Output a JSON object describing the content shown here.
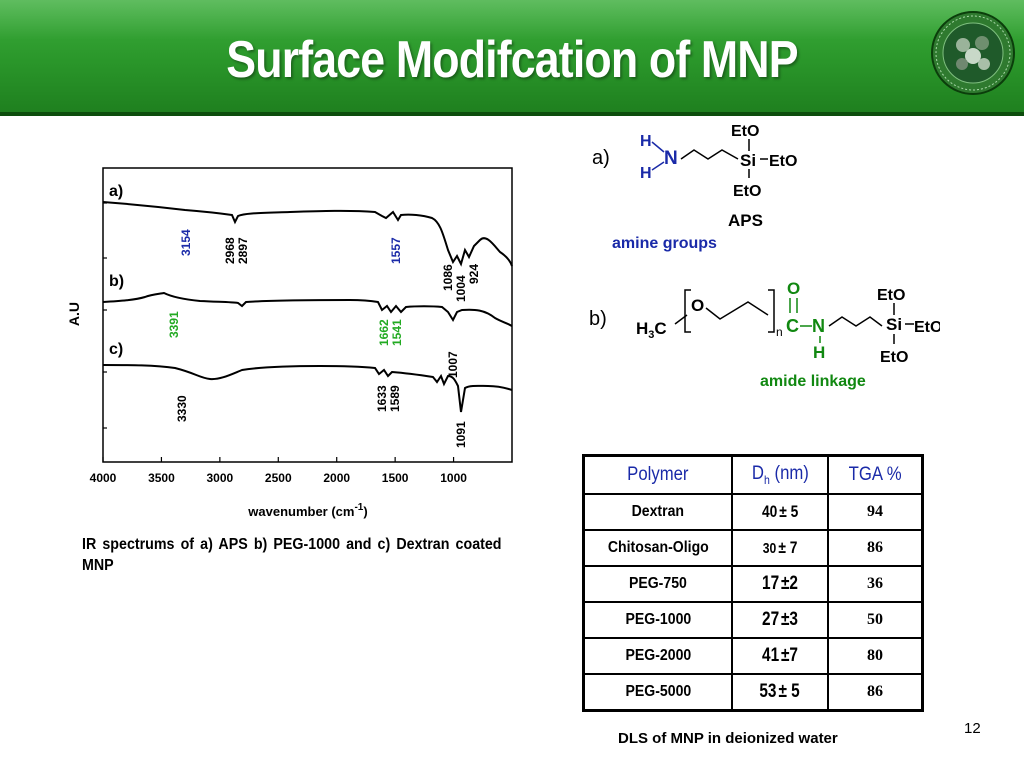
{
  "slide": {
    "title": "Surface Modifcation of MNP",
    "page_number": "12",
    "colors": {
      "header_green": "#2a962a",
      "blue_label": "#1a2aa8",
      "green_label": "#22aa22",
      "amide_green": "#118811"
    }
  },
  "ir_chart": {
    "ylabel": "A.U",
    "xlabel_main": "wavenumber (cm",
    "xlabel_sup": "-1",
    "xlabel_close": ")",
    "caption": "IR spectrums of a) APS b) PEG-1000 and c) Dextran coated MNP"
  },
  "chart_data": {
    "type": "line",
    "xlabel": "wavenumber (cm-1)",
    "ylabel": "A.U",
    "xlim": [
      4000,
      500
    ],
    "x_ticks": [
      "4000",
      "3500",
      "3000",
      "2500",
      "2000",
      "1500",
      "1000"
    ],
    "series": [
      {
        "name": "a)",
        "peak_labels": [
          {
            "text": "3154",
            "color": "blue"
          },
          {
            "text": "2968",
            "color": "black"
          },
          {
            "text": "2897",
            "color": "black"
          },
          {
            "text": "1557",
            "color": "blue"
          },
          {
            "text": "1086",
            "color": "black"
          },
          {
            "text": "1004",
            "color": "black"
          },
          {
            "text": "924",
            "color": "black"
          }
        ]
      },
      {
        "name": "b)",
        "peak_labels": [
          {
            "text": "3391",
            "color": "green"
          },
          {
            "text": "1662",
            "color": "green"
          },
          {
            "text": "1541",
            "color": "green"
          },
          {
            "text": "1007",
            "color": "black"
          }
        ]
      },
      {
        "name": "c)",
        "peak_labels": [
          {
            "text": "3330",
            "color": "black"
          },
          {
            "text": "1633",
            "color": "black"
          },
          {
            "text": "1589",
            "color": "black"
          },
          {
            "text": "1091",
            "color": "black"
          }
        ]
      }
    ]
  },
  "structures": {
    "a": {
      "label": "a)",
      "h_top": "H",
      "n": "N",
      "h_bottom": "H",
      "si": "Si",
      "eto_top": "EtO",
      "eto_right": "EtO",
      "eto_bottom": "EtO",
      "name": "APS",
      "group": "amine groups"
    },
    "b": {
      "label": "b)",
      "h3c_h": "H",
      "h3c_sub": "3",
      "h3c_c": "C",
      "o_chain": "O",
      "n_sub": "n",
      "o_carbonyl": "O",
      "c": "C",
      "n": "N",
      "h": "H",
      "si": "Si",
      "eto_top": "EtO",
      "eto_right": "EtO",
      "eto_bottom": "EtO",
      "group": "amide linkage"
    }
  },
  "table": {
    "headers": {
      "polymer": "Polymer",
      "dh_main": "D",
      "dh_sub": "h",
      "dh_unit": " (nm)",
      "tga": "TGA %"
    },
    "rows": [
      {
        "polymer": "Dextran",
        "dh_num": "40",
        "dh_pm": " ± 5",
        "tga": "94"
      },
      {
        "polymer": "Chitosan-Oligo",
        "dh_num": "30",
        "dh_pm": " ± 7",
        "tga": "86"
      },
      {
        "polymer": "PEG-750",
        "dh_num": "17",
        "dh_pm": " ±2",
        "tga": "36"
      },
      {
        "polymer": "PEG-1000",
        "dh_num": "27",
        "dh_pm": " ±3",
        "tga": "50"
      },
      {
        "polymer": "PEG-2000",
        "dh_num": "41",
        "dh_pm": " ±7",
        "tga": "80"
      },
      {
        "polymer": "PEG-5000",
        "dh_num": "53",
        "dh_pm": " ± 5",
        "tga": "86"
      }
    ],
    "caption": "DLS of MNP in deionized water"
  }
}
